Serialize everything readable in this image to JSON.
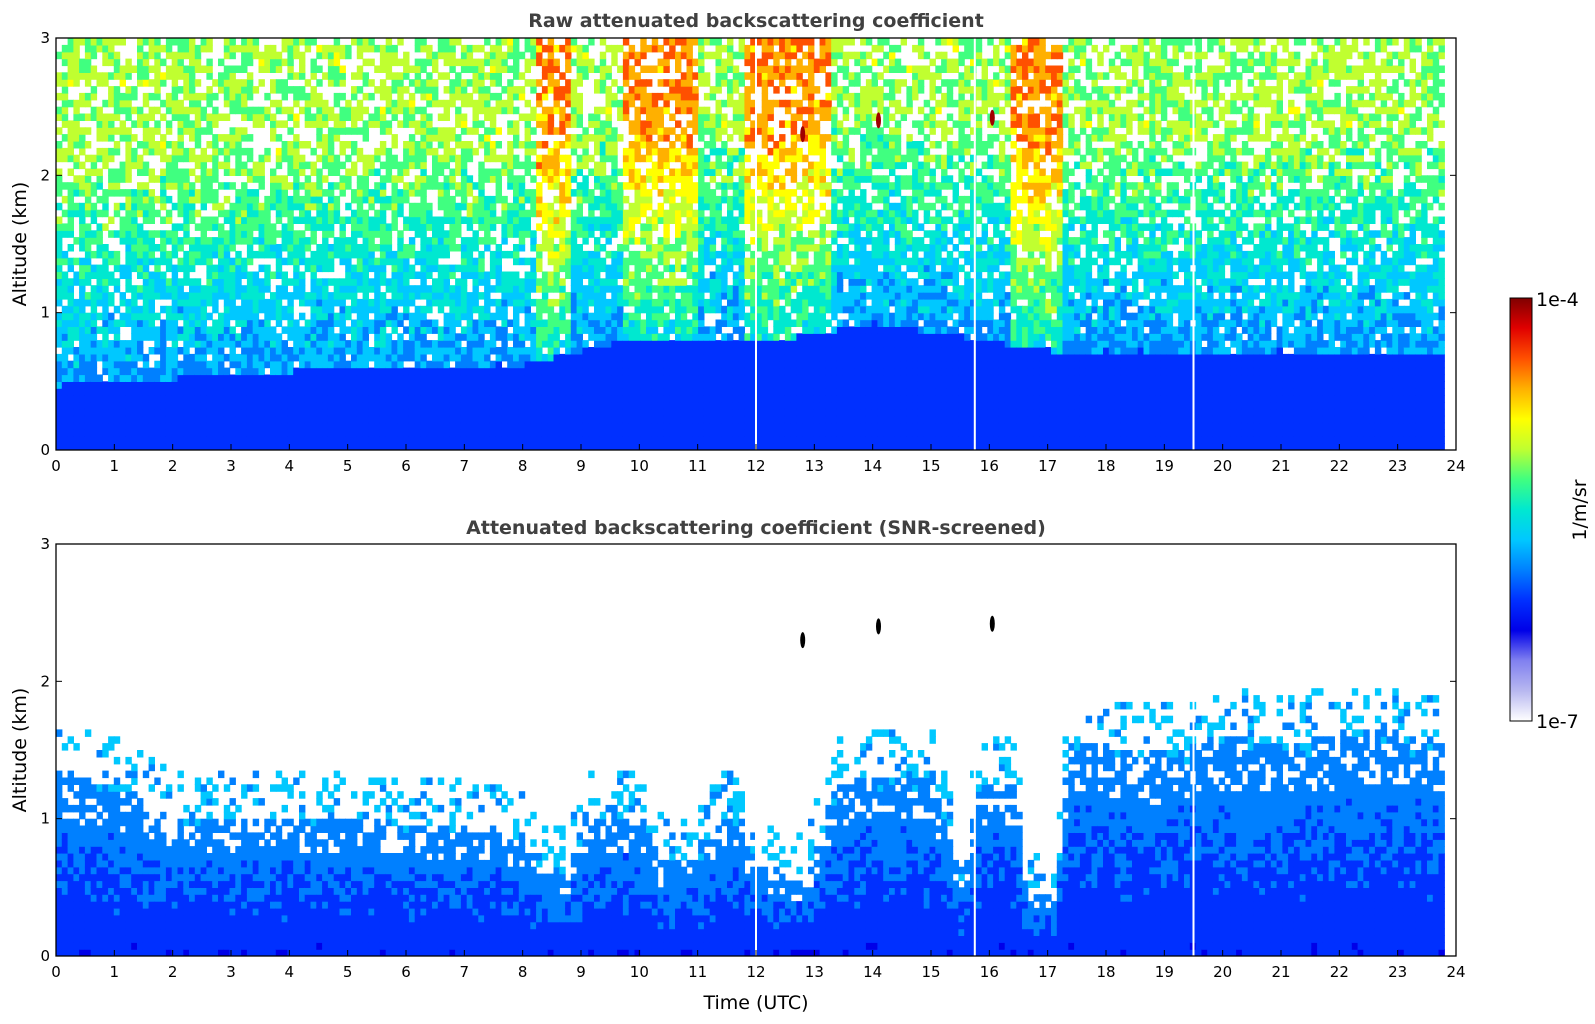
{
  "chart_data": [
    {
      "type": "heatmap",
      "title": "Raw attenuated backscattering coefficient",
      "xlabel": "",
      "ylabel": "Altitude (km)",
      "xlim": [
        0,
        24
      ],
      "ylim": [
        0,
        3
      ],
      "x_ticks": [
        "0",
        "1",
        "2",
        "3",
        "4",
        "5",
        "6",
        "7",
        "8",
        "9",
        "10",
        "11",
        "12",
        "13",
        "14",
        "15",
        "16",
        "17",
        "18",
        "19",
        "20",
        "21",
        "22",
        "23",
        "24"
      ],
      "y_ticks": [
        "0",
        "1",
        "2",
        "3"
      ],
      "grid": false,
      "screened": false,
      "data_end_time": 23.8,
      "boundary_layer_top_km": [
        {
          "t": 0,
          "h": 0.45
        },
        {
          "t": 4,
          "h": 0.55
        },
        {
          "t": 8,
          "h": 0.6
        },
        {
          "t": 10,
          "h": 0.8
        },
        {
          "t": 12,
          "h": 0.75
        },
        {
          "t": 14,
          "h": 0.9
        },
        {
          "t": 17,
          "h": 0.7
        },
        {
          "t": 20,
          "h": 0.7
        },
        {
          "t": 23.8,
          "h": 0.7
        }
      ],
      "enhanced_bands_utc": [
        [
          8.2,
          8.8
        ],
        [
          9.7,
          11.0
        ],
        [
          11.8,
          13.2
        ],
        [
          16.3,
          17.2
        ]
      ],
      "point_features": [
        {
          "t": 12.8,
          "h": 2.3
        },
        {
          "t": 14.1,
          "h": 2.4
        },
        {
          "t": 16.05,
          "h": 2.42
        }
      ],
      "data_gaps_utc": [
        12.0,
        15.75,
        19.5
      ]
    },
    {
      "type": "heatmap",
      "title": "Attenuated backscattering coefficient (SNR-screened)",
      "xlabel": "Time (UTC)",
      "ylabel": "Altitude (km)",
      "xlim": [
        0,
        24
      ],
      "ylim": [
        0,
        3
      ],
      "x_ticks": [
        "0",
        "1",
        "2",
        "3",
        "4",
        "5",
        "6",
        "7",
        "8",
        "9",
        "10",
        "11",
        "12",
        "13",
        "14",
        "15",
        "16",
        "17",
        "18",
        "19",
        "20",
        "21",
        "22",
        "23",
        "24"
      ],
      "y_ticks": [
        "0",
        "1",
        "2",
        "3"
      ],
      "grid": false,
      "screened": true,
      "data_end_time": 23.8,
      "signal_top_km": [
        {
          "t": 0,
          "h": 1.3
        },
        {
          "t": 1,
          "h": 1.2
        },
        {
          "t": 2,
          "h": 0.95
        },
        {
          "t": 4,
          "h": 1.0
        },
        {
          "t": 6,
          "h": 0.95
        },
        {
          "t": 8,
          "h": 0.85
        },
        {
          "t": 8.3,
          "h": 0.6
        },
        {
          "t": 8.7,
          "h": 0.55
        },
        {
          "t": 9,
          "h": 0.95
        },
        {
          "t": 10,
          "h": 1.0
        },
        {
          "t": 10.3,
          "h": 0.65
        },
        {
          "t": 11,
          "h": 0.75
        },
        {
          "t": 11.5,
          "h": 1.0
        },
        {
          "t": 12.1,
          "h": 0.6
        },
        {
          "t": 12.8,
          "h": 0.5
        },
        {
          "t": 13.3,
          "h": 1.2
        },
        {
          "t": 14,
          "h": 1.3
        },
        {
          "t": 15,
          "h": 1.25
        },
        {
          "t": 15.5,
          "h": 0.45
        },
        {
          "t": 15.75,
          "h": 1.2
        },
        {
          "t": 16.4,
          "h": 1.25
        },
        {
          "t": 16.6,
          "h": 0.4
        },
        {
          "t": 17.1,
          "h": 0.45
        },
        {
          "t": 17.3,
          "h": 1.5
        },
        {
          "t": 18,
          "h": 1.5
        },
        {
          "t": 19,
          "h": 1.45
        },
        {
          "t": 20,
          "h": 1.6
        },
        {
          "t": 21,
          "h": 1.5
        },
        {
          "t": 22,
          "h": 1.6
        },
        {
          "t": 23,
          "h": 1.6
        },
        {
          "t": 23.8,
          "h": 1.5
        }
      ],
      "point_features": [
        {
          "t": 12.8,
          "h": 2.3
        },
        {
          "t": 14.1,
          "h": 2.4
        },
        {
          "t": 16.05,
          "h": 2.42
        }
      ],
      "data_gaps_utc": [
        12.0,
        15.75,
        19.5
      ]
    }
  ],
  "colorbar": {
    "min_label": "1e-7",
    "max_label": "1e-4",
    "label": "1/m/sr",
    "colormap": [
      "#ffffff",
      "#b8b8f0",
      "#8080f0",
      "#0000e8",
      "#0030ff",
      "#0080ff",
      "#00c8ff",
      "#00e8d0",
      "#40ff80",
      "#c0ff30",
      "#ffff00",
      "#ffb000",
      "#ff5000",
      "#e00000",
      "#800000"
    ]
  }
}
